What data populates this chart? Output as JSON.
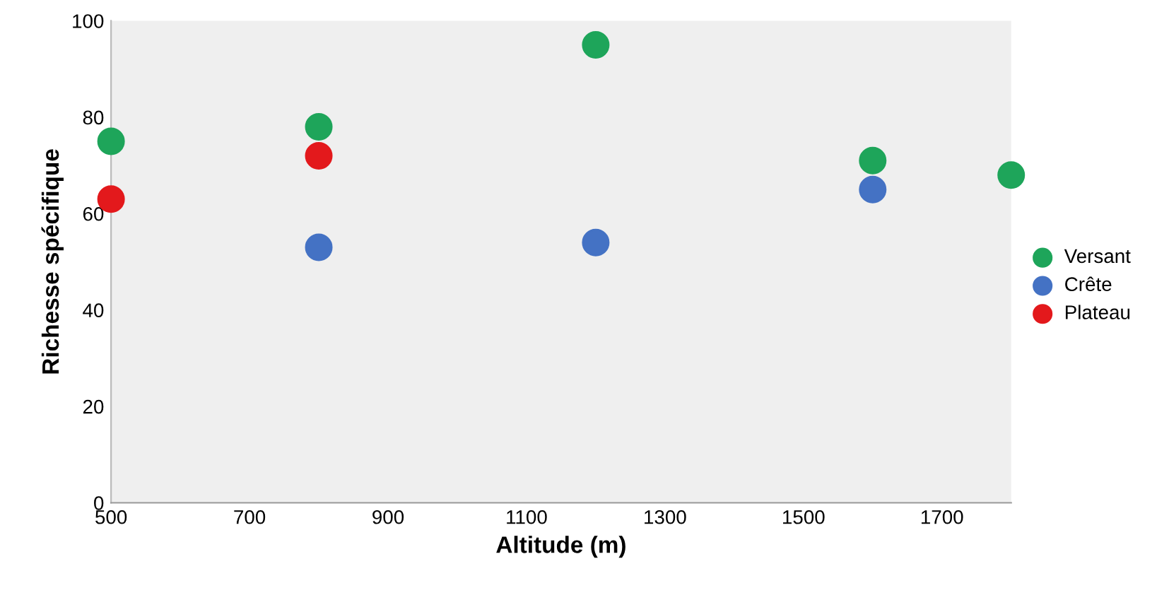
{
  "chart_data": {
    "type": "scatter",
    "xlabel": "Altitude (m)",
    "ylabel": "Richesse spécifique",
    "series": [
      {
        "name": "Versant",
        "color": "#1ea55a",
        "x": [
          500,
          800,
          1200,
          1600,
          1800
        ],
        "values": [
          75,
          78,
          95,
          71,
          68
        ]
      },
      {
        "name": "Crête",
        "color": "#4472c4",
        "x": [
          800,
          1200,
          1600
        ],
        "values": [
          53,
          54,
          65
        ]
      },
      {
        "name": "Plateau",
        "color": "#e3191c",
        "x": [
          500,
          800
        ],
        "values": [
          63,
          72
        ]
      }
    ],
    "xlim": [
      500,
      1800
    ],
    "xticks": [
      500,
      700,
      900,
      1100,
      1300,
      1500,
      1700
    ],
    "ylim": [
      0,
      100
    ],
    "yticks": [
      0,
      20,
      40,
      60,
      80,
      100
    ],
    "grid": false,
    "legend": "right",
    "marker": "circle"
  }
}
